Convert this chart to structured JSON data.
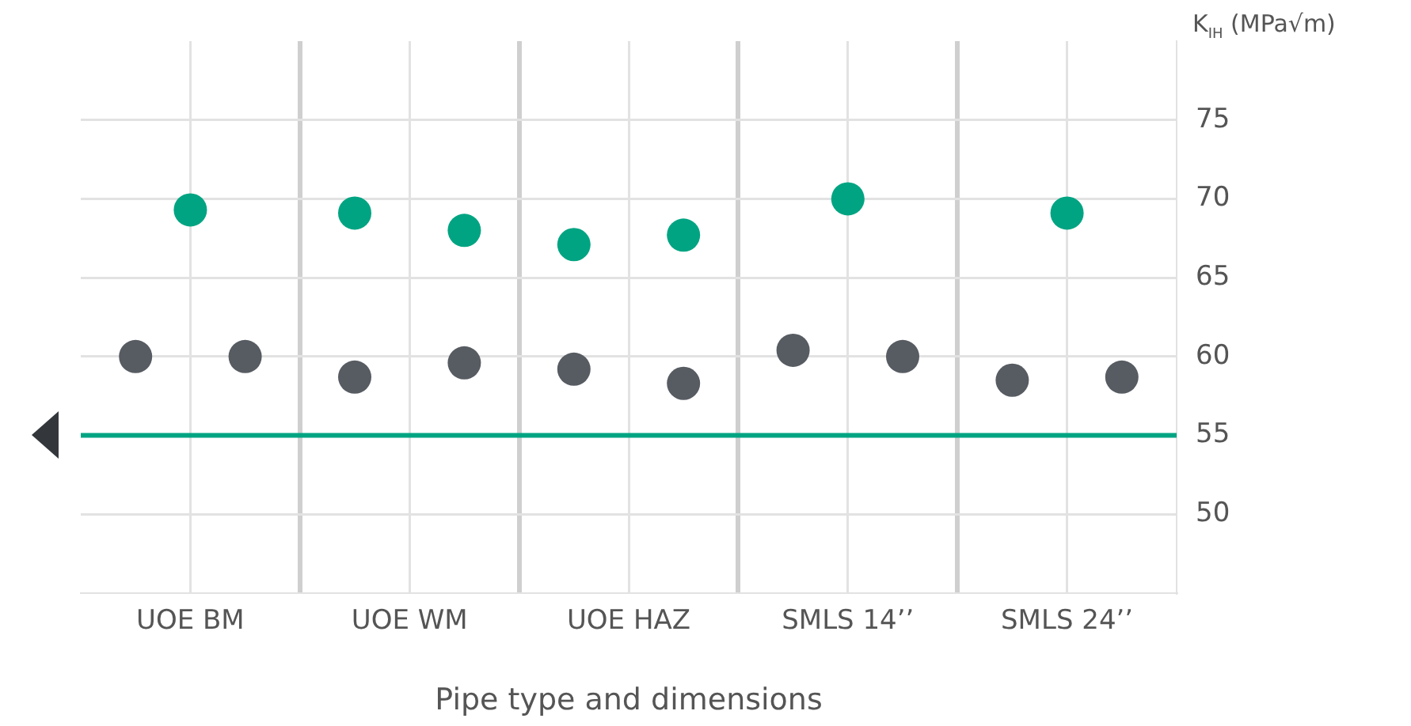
{
  "chart_data": {
    "type": "scatter",
    "xlabel": "Pipe type and dimensions",
    "ylabel": "K$_{IH}$ (MPa√m)",
    "categories": [
      null,
      null,
      "UOE BM",
      null,
      null,
      null,
      "UOE WM",
      null,
      null,
      null,
      "UOE HAZ",
      null,
      null,
      null,
      "SMLS 14’’",
      null,
      null,
      null,
      "SMLS 24’’",
      null,
      null
    ],
    "ylim": [
      45,
      80
    ],
    "yticks": [
      50,
      55,
      60,
      65,
      70,
      75
    ],
    "series": [
      {
        "color": "#575b62",
        "values": [
          null,
          60.0,
          null,
          60.0,
          null,
          58.7,
          null,
          59.6,
          null,
          59.2,
          null,
          58.3,
          null,
          60.4,
          null,
          60.0,
          null,
          58.5,
          null,
          58.7,
          null
        ]
      },
      {
        "color": "#00a482",
        "values": [
          null,
          null,
          69.3,
          null,
          null,
          69.1,
          null,
          68.0,
          null,
          67.1,
          null,
          67.7,
          null,
          null,
          70.0,
          null,
          null,
          null,
          69.1,
          null,
          null
        ]
      }
    ],
    "ref_lines": [
      {
        "axis": "y",
        "value": 55,
        "color": "#00a482"
      }
    ],
    "grid": true,
    "legend": false,
    "marker": "circle"
  }
}
